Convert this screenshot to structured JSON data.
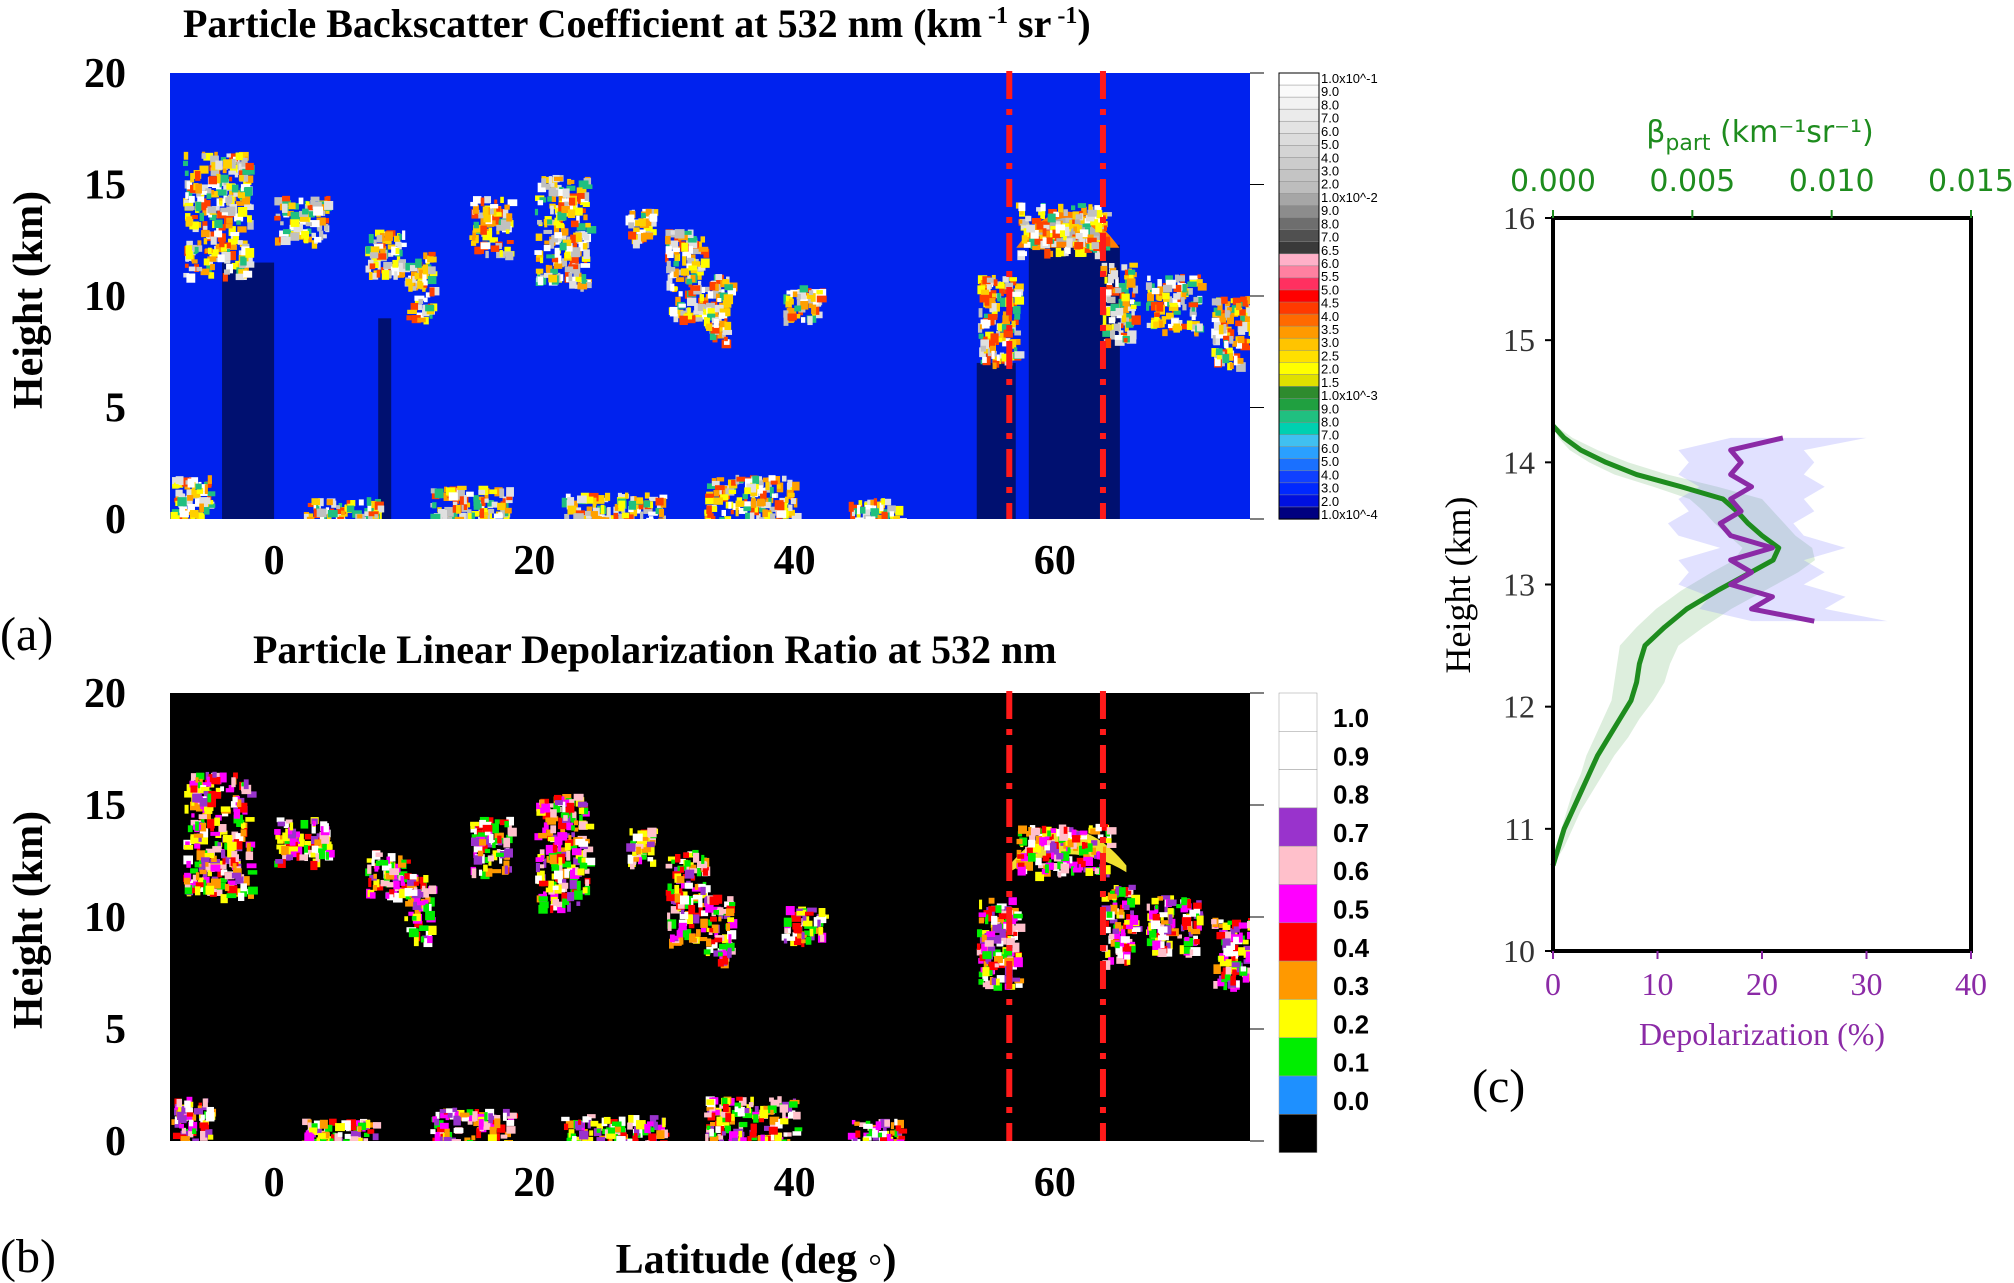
{
  "panel_a": {
    "title_main": "Particle Backscatter Coefficient at 532 nm (km",
    "title_sup1": " -1",
    "title_mid": " sr",
    "title_sup2": " -1",
    "title_end": ")",
    "ylabel": "Height (km)",
    "label": "(a)",
    "colorbar_labels": [
      "1.0x10^-1",
      "9.0",
      "8.0",
      "7.0",
      "6.0",
      "5.0",
      "4.0",
      "3.0",
      "2.0",
      "1.0x10^-2",
      "9.0",
      "8.0",
      "7.0",
      "6.5",
      "6.0",
      "5.5",
      "5.0",
      "4.5",
      "4.0",
      "3.5",
      "3.0",
      "2.5",
      "2.0",
      "1.5",
      "1.0x10^-3",
      "9.0",
      "8.0",
      "7.0",
      "6.0",
      "5.0",
      "4.0",
      "3.0",
      "2.0",
      "1.0x10^-4"
    ],
    "colorbar_colors": [
      "#ffffff",
      "#fafafa",
      "#f2f2f2",
      "#ebebeb",
      "#e3e3e3",
      "#dcdcdc",
      "#d4d4d4",
      "#cccccc",
      "#c4c4c4",
      "#bdbdbd",
      "#a6a6a6",
      "#8c8c8c",
      "#6e6e6e",
      "#505050",
      "#3a3a3a",
      "#ffb0c8",
      "#ff80a0",
      "#ff3060",
      "#ff0000",
      "#ff3a00",
      "#ff6a00",
      "#ff9a00",
      "#ffc400",
      "#ffe000",
      "#ffff00",
      "#e0e000",
      "#2e8b2e",
      "#20a040",
      "#20c080",
      "#00d0b0",
      "#40c0f0",
      "#2aa0ff",
      "#1a70ff",
      "#1040ff",
      "#0028ff",
      "#0010e0",
      "#000080"
    ],
    "background_color": "#0022ee",
    "attenuated_color": "#001070"
  },
  "panel_b": {
    "title": "Particle Linear Depolarization Ratio at 532 nm",
    "ylabel": "Height (km)",
    "xlabel": "Latitude (deg ◦)",
    "label": "(b)",
    "colorbar_labels": [
      "1.0",
      "0.9",
      "0.8",
      "0.7",
      "0.6",
      "0.5",
      "0.4",
      "0.3",
      "0.2",
      "0.1",
      "0.0"
    ],
    "colorbar_colors": [
      "#ffffff",
      "#ffffff",
      "#ffffff",
      "#9933cc",
      "#ffc0cb",
      "#ff00ff",
      "#ff0000",
      "#ff9900",
      "#ffff00",
      "#00ee00",
      "#1e90ff",
      "#000000"
    ],
    "background_color": "#000000"
  },
  "panel_c": {
    "label": "(c)",
    "ylabel": "Height (km)",
    "xlabel_bottom": "Depolarization (%)",
    "xlabel_top": "β_part (km⁻¹sr⁻¹)",
    "green_color": "#1e8c1e",
    "purple_color": "#8b2aa6"
  },
  "chart_data": [
    {
      "type": "heatmap",
      "title": "Particle Backscatter Coefficient at 532 nm (km -1 sr -1)",
      "xlabel": "",
      "ylabel": "Height (km)",
      "xlim": [
        -8,
        75
      ],
      "ylim": [
        0,
        20
      ],
      "x_ticks": [
        "0",
        "20",
        "40",
        "60"
      ],
      "y_ticks": [
        "0",
        "5",
        "10",
        "15",
        "20"
      ],
      "colorbar_scale": "log",
      "colorbar_range": [
        0.0001,
        0.1
      ],
      "reference_lines_x": [
        56.5,
        63.7
      ]
    },
    {
      "type": "heatmap",
      "title": "Particle Linear Depolarization Ratio at 532 nm",
      "xlabel": "Latitude (deg ◦)",
      "ylabel": "Height (km)",
      "xlim": [
        -8,
        75
      ],
      "ylim": [
        0,
        20
      ],
      "x_ticks": [
        "0",
        "20",
        "40",
        "60"
      ],
      "y_ticks": [
        "0",
        "5",
        "10",
        "15",
        "20"
      ],
      "colorbar_range": [
        0.0,
        1.0
      ],
      "reference_lines_x": [
        56.5,
        63.7
      ]
    },
    {
      "type": "line",
      "xlabel": "Depolarization (%)",
      "ylabel": "Height (km)",
      "xlim": [
        0,
        40
      ],
      "ylim": [
        10,
        16
      ],
      "x_ticks": [
        "0",
        "10",
        "20",
        "30",
        "40"
      ],
      "y_ticks": [
        "10",
        "11",
        "12",
        "13",
        "14",
        "15",
        "16"
      ],
      "top_axis": {
        "label": "β_part (km⁻¹sr⁻¹)",
        "xlim": [
          0.0,
          0.015
        ],
        "ticks": [
          "0.000",
          "0.005",
          "0.010",
          "0.015"
        ]
      },
      "series": [
        {
          "axis": "top",
          "y": [
            10.7,
            10.85,
            11.0,
            11.15,
            11.3,
            11.45,
            11.6,
            11.75,
            11.9,
            12.05,
            12.2,
            12.35,
            12.5,
            12.65,
            12.8,
            12.95,
            13.1,
            13.2,
            13.3,
            13.4,
            13.5,
            13.6,
            13.7,
            13.8,
            13.9,
            14.0,
            14.1,
            14.2,
            14.3
          ],
          "x": [
            0.0,
            0.0002,
            0.0004,
            0.0007,
            0.001,
            0.0013,
            0.0016,
            0.002,
            0.0024,
            0.0028,
            0.003,
            0.0031,
            0.0033,
            0.004,
            0.0048,
            0.0059,
            0.0071,
            0.0079,
            0.0081,
            0.0075,
            0.007,
            0.0066,
            0.0061,
            0.0046,
            0.003,
            0.0019,
            0.001,
            0.0004,
            0.0
          ],
          "x_lower": [
            0.0,
            0.0001,
            0.0003,
            0.0005,
            0.0007,
            0.001,
            0.0012,
            0.0015,
            0.0018,
            0.0021,
            0.0022,
            0.0023,
            0.0024,
            0.003,
            0.0037,
            0.0046,
            0.0057,
            0.0065,
            0.0068,
            0.0063,
            0.0058,
            0.0054,
            0.0049,
            0.0036,
            0.0022,
            0.0013,
            0.0006,
            0.0002,
            0.0
          ],
          "x_upper": [
            0.0,
            0.0004,
            0.0007,
            0.001,
            0.0014,
            0.0018,
            0.0022,
            0.0027,
            0.0031,
            0.0036,
            0.004,
            0.0042,
            0.0045,
            0.0054,
            0.0064,
            0.0076,
            0.0088,
            0.0094,
            0.0093,
            0.0087,
            0.0083,
            0.0079,
            0.0075,
            0.0059,
            0.0041,
            0.0027,
            0.0016,
            0.0007,
            0.0001
          ]
        },
        {
          "axis": "bottom",
          "y": [
            12.7,
            12.8,
            12.9,
            13.0,
            13.1,
            13.2,
            13.3,
            13.4,
            13.5,
            13.6,
            13.7,
            13.8,
            13.9,
            14.0,
            14.1,
            14.2
          ],
          "x": [
            25,
            19,
            21,
            17,
            19,
            17,
            21,
            17,
            16,
            18,
            17,
            19,
            17,
            18,
            17,
            22
          ],
          "x_lower": [
            19,
            14,
            15,
            12,
            13,
            12,
            16,
            12,
            11,
            13,
            12,
            14,
            12,
            13,
            12,
            17
          ],
          "x_upper": [
            32,
            26,
            28,
            24,
            26,
            24,
            28,
            24,
            23,
            25,
            24,
            26,
            24,
            25,
            24,
            30
          ]
        }
      ]
    }
  ]
}
